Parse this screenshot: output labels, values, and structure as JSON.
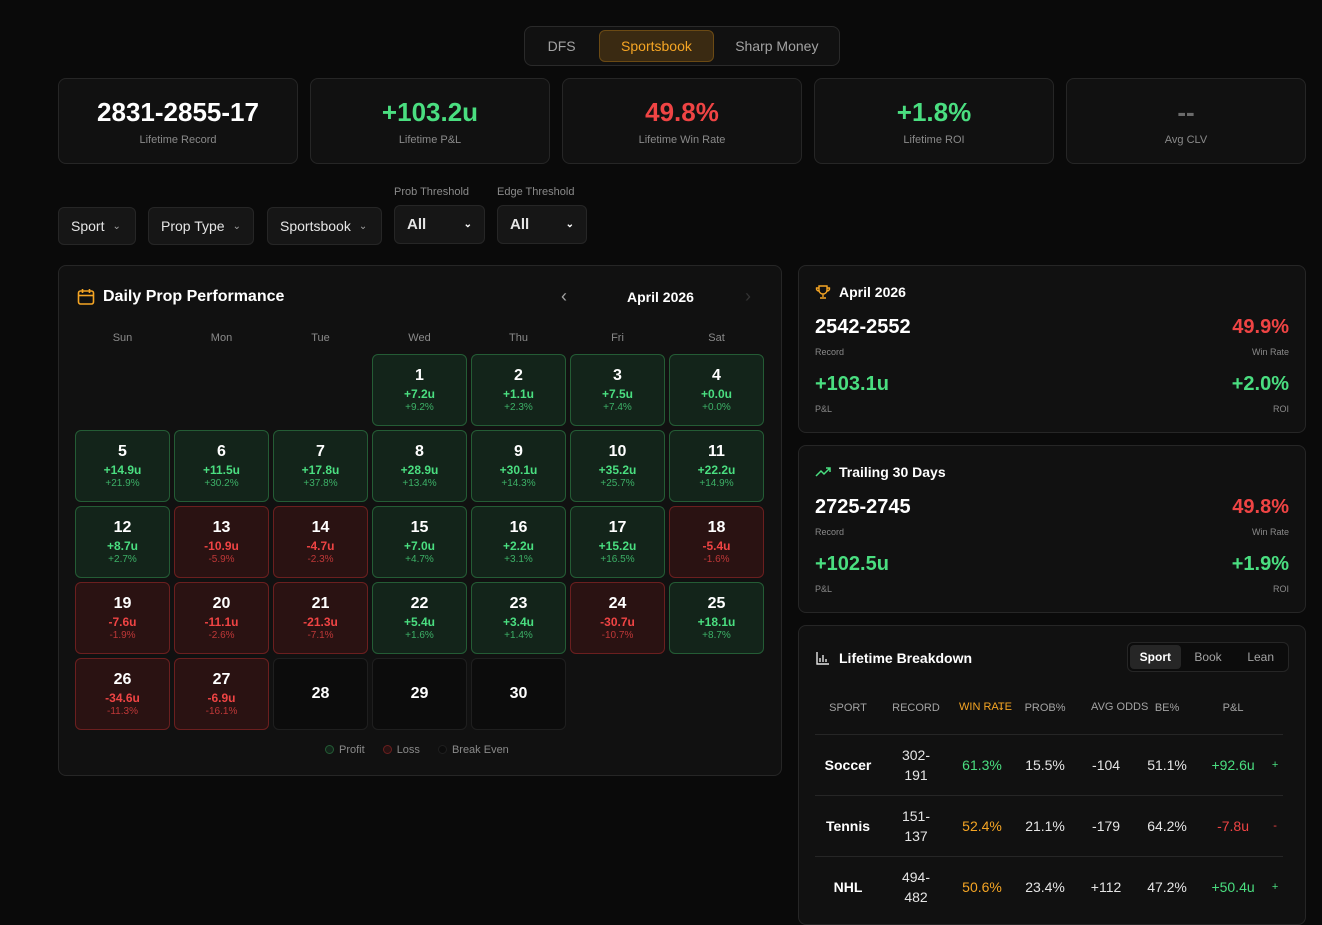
{
  "tabs": [
    "DFS",
    "Sportsbook",
    "Sharp Money"
  ],
  "stats": [
    {
      "value": "2831-2855-17",
      "label": "Lifetime Record"
    },
    {
      "value": "+103.2u",
      "label": "Lifetime P&L"
    },
    {
      "value": "49.8%",
      "label": "Lifetime Win Rate"
    },
    {
      "value": "+1.8%",
      "label": "Lifetime ROI"
    },
    {
      "value": "--",
      "label": "Avg CLV"
    }
  ],
  "filters": {
    "sport": "Sport",
    "prop_type": "Prop Type",
    "sportsbook": "Sportsbook",
    "prob_label": "Prob Threshold",
    "prob_value": "All",
    "edge_label": "Edge Threshold",
    "edge_value": "All"
  },
  "calendar": {
    "title": "Daily Prop Performance",
    "month": "April 2026",
    "weekdays": [
      "Sun",
      "Mon",
      "Tue",
      "Wed",
      "Thu",
      "Fri",
      "Sat"
    ],
    "days": [
      {
        "d": "1",
        "u": "+7.2u",
        "p": "+9.2%",
        "s": "g"
      },
      {
        "d": "2",
        "u": "+1.1u",
        "p": "+2.3%",
        "s": "g"
      },
      {
        "d": "3",
        "u": "+7.5u",
        "p": "+7.4%",
        "s": "g"
      },
      {
        "d": "4",
        "u": "+0.0u",
        "p": "+0.0%",
        "s": "g"
      },
      {
        "d": "5",
        "u": "+14.9u",
        "p": "+21.9%",
        "s": "g"
      },
      {
        "d": "6",
        "u": "+11.5u",
        "p": "+30.2%",
        "s": "g"
      },
      {
        "d": "7",
        "u": "+17.8u",
        "p": "+37.8%",
        "s": "g"
      },
      {
        "d": "8",
        "u": "+28.9u",
        "p": "+13.4%",
        "s": "g"
      },
      {
        "d": "9",
        "u": "+30.1u",
        "p": "+14.3%",
        "s": "g"
      },
      {
        "d": "10",
        "u": "+35.2u",
        "p": "+25.7%",
        "s": "g"
      },
      {
        "d": "11",
        "u": "+22.2u",
        "p": "+14.9%",
        "s": "g"
      },
      {
        "d": "12",
        "u": "+8.7u",
        "p": "+2.7%",
        "s": "g"
      },
      {
        "d": "13",
        "u": "-10.9u",
        "p": "-5.9%",
        "s": "r"
      },
      {
        "d": "14",
        "u": "-4.7u",
        "p": "-2.3%",
        "s": "r"
      },
      {
        "d": "15",
        "u": "+7.0u",
        "p": "+4.7%",
        "s": "g"
      },
      {
        "d": "16",
        "u": "+2.2u",
        "p": "+3.1%",
        "s": "g"
      },
      {
        "d": "17",
        "u": "+15.2u",
        "p": "+16.5%",
        "s": "g"
      },
      {
        "d": "18",
        "u": "-5.4u",
        "p": "-1.6%",
        "s": "r"
      },
      {
        "d": "19",
        "u": "-7.6u",
        "p": "-1.9%",
        "s": "r"
      },
      {
        "d": "20",
        "u": "-11.1u",
        "p": "-2.6%",
        "s": "r"
      },
      {
        "d": "21",
        "u": "-21.3u",
        "p": "-7.1%",
        "s": "r"
      },
      {
        "d": "22",
        "u": "+5.4u",
        "p": "+1.6%",
        "s": "g"
      },
      {
        "d": "23",
        "u": "+3.4u",
        "p": "+1.4%",
        "s": "g"
      },
      {
        "d": "24",
        "u": "-30.7u",
        "p": "-10.7%",
        "s": "r"
      },
      {
        "d": "25",
        "u": "+18.1u",
        "p": "+8.7%",
        "s": "g"
      },
      {
        "d": "26",
        "u": "-34.6u",
        "p": "-11.3%",
        "s": "r"
      },
      {
        "d": "27",
        "u": "-6.9u",
        "p": "-16.1%",
        "s": "r"
      },
      {
        "d": "28",
        "u": "",
        "p": "",
        "s": "e"
      },
      {
        "d": "29",
        "u": "",
        "p": "",
        "s": "e"
      },
      {
        "d": "30",
        "u": "",
        "p": "",
        "s": "e"
      }
    ],
    "legend": [
      "Profit",
      "Loss",
      "Break Even"
    ],
    "colors": {
      "profit": "#4ade80",
      "loss": "#ef4444",
      "accent": "#f5a524"
    }
  },
  "month_summary": {
    "title": "April 2026",
    "record": "2542-2552",
    "record_label": "Record",
    "win_rate": "49.9%",
    "win_rate_label": "Win Rate",
    "pnl": "+103.1u",
    "pnl_label": "P&L",
    "roi": "+2.0%",
    "roi_label": "ROI"
  },
  "trailing": {
    "title": "Trailing 30 Days",
    "record": "2725-2745",
    "record_label": "Record",
    "win_rate": "49.8%",
    "win_rate_label": "Win Rate",
    "pnl": "+102.5u",
    "pnl_label": "P&L",
    "roi": "+1.9%",
    "roi_label": "ROI"
  },
  "breakdown": {
    "title": "Lifetime Breakdown",
    "segments": [
      "Sport",
      "Book",
      "Lean"
    ],
    "columns": [
      "SPORT",
      "RECORD",
      "WIN RATE",
      "PROB%",
      "AVG ODDS",
      "BE%",
      "P&L"
    ],
    "rows": [
      {
        "sport": "Soccer",
        "record_a": "302-",
        "record_b": "191",
        "win": "61.3%",
        "prob": "15.5%",
        "odds": "-104",
        "be": "51.1%",
        "pnl": "+92.6u",
        "extra": "+"
      },
      {
        "sport": "Tennis",
        "record_a": "151-",
        "record_b": "137",
        "win": "52.4%",
        "prob": "21.1%",
        "odds": "-179",
        "be": "64.2%",
        "pnl": "-7.8u",
        "extra": "-"
      },
      {
        "sport": "NHL",
        "record_a": "494-",
        "record_b": "482",
        "win": "50.6%",
        "prob": "23.4%",
        "odds": "+112",
        "be": "47.2%",
        "pnl": "+50.4u",
        "extra": "+"
      }
    ]
  }
}
